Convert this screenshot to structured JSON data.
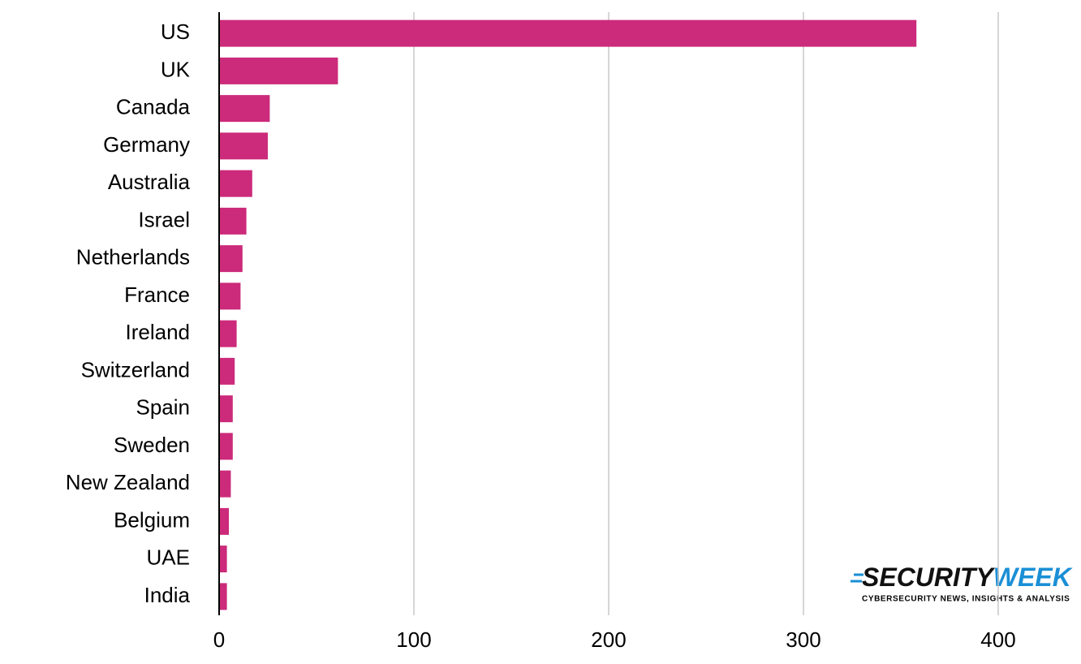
{
  "chart_data": {
    "type": "barh",
    "categories": [
      "US",
      "UK",
      "Canada",
      "Germany",
      "Australia",
      "Israel",
      "Netherlands",
      "France",
      "Ireland",
      "Switzerland",
      "Spain",
      "Sweden",
      "New Zealand",
      "Belgium",
      "UAE",
      "India"
    ],
    "values": [
      358,
      61,
      26,
      25,
      17,
      14,
      12,
      11,
      9,
      8,
      7,
      7,
      6,
      5,
      4,
      4
    ],
    "color": "#cc2a7a",
    "xlim": [
      0,
      400
    ],
    "xticks": [
      0,
      100,
      200,
      300,
      400
    ],
    "grid": true
  },
  "logo": {
    "name_left": "SECURITY",
    "name_right": "WEEK",
    "tagline": "CYBERSECURITY NEWS, INSIGHTS & ANALYSIS"
  }
}
